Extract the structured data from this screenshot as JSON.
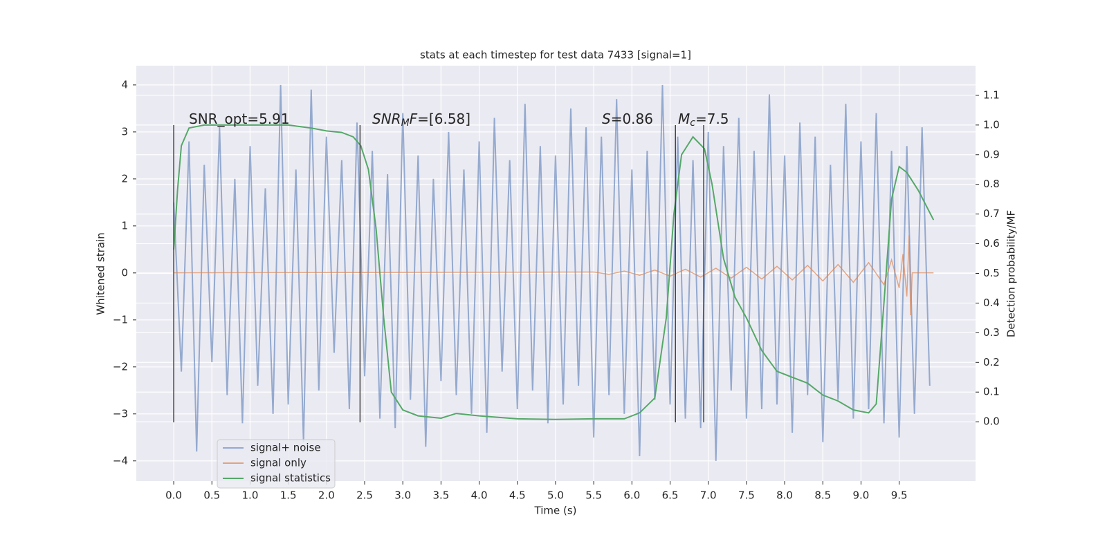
{
  "chart_data": {
    "type": "line",
    "title": "stats at each timestep for test data 7433 [signal=1]",
    "xlabel": "Time (s)",
    "ylabel": "Whitened strain",
    "y2label": "Detection probability/MF",
    "xlim": [
      -0.49,
      10.5
    ],
    "ylim": [
      -4.43,
      4.41
    ],
    "y2lim": [
      -0.2,
      1.2
    ],
    "xticks": [
      {
        "value": 0,
        "label": "0.0"
      },
      0.5,
      {
        "value": 1,
        "label": "1.0"
      },
      1.5,
      {
        "value": 2,
        "label": "2.0"
      },
      2.5,
      {
        "value": 3,
        "label": "3.0"
      },
      3.5,
      {
        "value": 4,
        "label": "4.0"
      },
      4.5,
      {
        "value": 5,
        "label": "5.0"
      },
      5.5,
      {
        "value": 6,
        "label": "6.0"
      },
      6.5,
      {
        "value": 7,
        "label": "7.0"
      },
      7.5,
      {
        "value": 8,
        "label": "8.0"
      },
      8.5,
      {
        "value": 9,
        "label": "9.0"
      },
      9.5
    ],
    "yticks": [
      {
        "value": -4,
        "label": "−4"
      },
      {
        "value": -3,
        "label": "−3"
      },
      {
        "value": -2,
        "label": "−2"
      },
      {
        "value": -1,
        "label": "−1"
      },
      0,
      1,
      2,
      3,
      4
    ],
    "y2ticks": [
      {
        "value": 0,
        "label": "0.0"
      },
      0.1,
      0.2,
      0.3,
      0.4,
      0.5,
      0.6,
      0.7,
      0.8,
      0.9,
      {
        "value": 1,
        "label": "1.0"
      },
      1.1
    ],
    "grid": true,
    "legend": "lower left",
    "background": "#eaeaf2",
    "vlines": [
      0,
      2.44,
      6.57,
      6.94
    ],
    "annotations": [
      {
        "parts": [
          {
            "text": "SNR_opt=5.91"
          }
        ]
      },
      {
        "parts": [
          {
            "text": "SNR",
            "italic": true
          },
          {
            "text": "M",
            "italic": true,
            "sub": true
          },
          {
            "text": "F",
            "italic": true
          },
          {
            "text": "=[6.58]"
          }
        ]
      },
      {
        "parts": [
          {
            "text": "S",
            "italic": true
          },
          {
            "text": "=0.86"
          }
        ]
      },
      {
        "parts": [
          {
            "text": "M",
            "italic": true
          },
          {
            "text": "c",
            "italic": true,
            "sub": true
          },
          {
            "text": "=7.5"
          }
        ]
      }
    ],
    "series": [
      {
        "name": "signal+ noise",
        "color": "#4c72b0",
        "axis": "y",
        "x": [
          0,
          0.1,
          0.2,
          0.3,
          0.4,
          0.5,
          0.6,
          0.7,
          0.8,
          0.9,
          1,
          1.1,
          1.2,
          1.3,
          1.4,
          1.5,
          1.6,
          1.7,
          1.8,
          1.9,
          2,
          2.1,
          2.2,
          2.3,
          2.4,
          2.5,
          2.6,
          2.7,
          2.8,
          2.9,
          3,
          3.1,
          3.2,
          3.3,
          3.4,
          3.5,
          3.6,
          3.7,
          3.8,
          3.9,
          4,
          4.1,
          4.2,
          4.3,
          4.4,
          4.5,
          4.6,
          4.7,
          4.8,
          4.9,
          5,
          5.1,
          5.2,
          5.3,
          5.4,
          5.5,
          5.6,
          5.7,
          5.8,
          5.9,
          6,
          6.1,
          6.2,
          6.3,
          6.4,
          6.5,
          6.6,
          6.7,
          6.8,
          6.9,
          7,
          7.1,
          7.2,
          7.3,
          7.4,
          7.5,
          7.6,
          7.7,
          7.8,
          7.9,
          8,
          8.1,
          8.2,
          8.3,
          8.4,
          8.5,
          8.6,
          8.7,
          8.8,
          8.9,
          9,
          9.1,
          9.2,
          9.3,
          9.4,
          9.5,
          9.6,
          9.7,
          9.8,
          9.9
        ],
        "values": [
          1.5,
          -2.1,
          2.8,
          -3.8,
          2.3,
          -1.9,
          3.1,
          -2.6,
          2.0,
          -3.2,
          2.7,
          -2.4,
          1.8,
          -3.0,
          4.0,
          -2.8,
          2.2,
          -3.6,
          3.9,
          -2.5,
          2.9,
          -1.7,
          2.4,
          -2.9,
          3.2,
          -2.2,
          2.6,
          -3.1,
          2.1,
          -3.3,
          3.4,
          -2.7,
          2.5,
          -3.7,
          2.0,
          -2.3,
          3.0,
          -2.6,
          2.2,
          -3.0,
          2.8,
          -3.4,
          3.3,
          -2.1,
          2.4,
          -2.9,
          3.6,
          -2.5,
          2.7,
          -3.2,
          2.5,
          -2.8,
          3.5,
          -2.4,
          3.1,
          -3.5,
          2.9,
          -2.6,
          3.7,
          -3.0,
          2.2,
          -3.9,
          2.6,
          -2.7,
          4.0,
          -2.8,
          2.9,
          -3.1,
          2.4,
          -3.3,
          3.0,
          -4.0,
          2.7,
          -2.5,
          3.3,
          -3.1,
          2.6,
          -2.9,
          3.8,
          -2.8,
          2.5,
          -3.4,
          3.2,
          -2.6,
          2.9,
          -3.6,
          2.3,
          -2.7,
          3.6,
          -3.1,
          2.8,
          -2.9,
          3.4,
          -3.2,
          2.6,
          -3.5,
          2.7,
          -3.0,
          3.1,
          -2.4
        ]
      },
      {
        "name": "signal only",
        "color": "#dd8452",
        "axis": "y",
        "x": [
          0,
          5.5,
          5.7,
          5.9,
          6.1,
          6.3,
          6.5,
          6.7,
          6.9,
          7.1,
          7.3,
          7.5,
          7.7,
          7.9,
          8.1,
          8.3,
          8.5,
          8.7,
          8.9,
          9.1,
          9.3,
          9.4,
          9.5,
          9.55,
          9.6,
          9.63,
          9.65,
          9.67,
          9.7,
          9.95
        ],
        "values": [
          0,
          0.02,
          -0.03,
          0.04,
          -0.05,
          0.06,
          -0.07,
          0.08,
          -0.09,
          0.1,
          -0.11,
          0.12,
          -0.13,
          0.14,
          -0.15,
          0.16,
          -0.17,
          0.18,
          -0.2,
          0.22,
          -0.25,
          0.28,
          -0.32,
          0.4,
          -0.5,
          0.8,
          -0.9,
          0,
          0,
          0
        ]
      },
      {
        "name": "signal statistics",
        "color": "#55a868",
        "axis": "y2",
        "x": [
          0,
          0.05,
          0.1,
          0.2,
          0.4,
          1,
          1.5,
          1.8,
          2,
          2.2,
          2.35,
          2.45,
          2.55,
          2.65,
          2.75,
          2.85,
          3,
          3.2,
          3.5,
          3.7,
          4,
          4.5,
          5,
          5.5,
          5.9,
          6.1,
          6.3,
          6.45,
          6.55,
          6.65,
          6.8,
          6.95,
          7.05,
          7.2,
          7.35,
          7.5,
          7.7,
          7.9,
          8.1,
          8.3,
          8.5,
          8.7,
          8.9,
          9.1,
          9.2,
          9.3,
          9.4,
          9.5,
          9.6,
          9.75,
          9.95
        ],
        "values": [
          0.58,
          0.78,
          0.93,
          0.99,
          1,
          1,
          1,
          0.99,
          0.98,
          0.975,
          0.96,
          0.93,
          0.85,
          0.65,
          0.35,
          0.1,
          0.04,
          0.02,
          0.012,
          0.028,
          0.02,
          0.01,
          0.008,
          0.01,
          0.01,
          0.03,
          0.08,
          0.35,
          0.7,
          0.9,
          0.96,
          0.92,
          0.8,
          0.55,
          0.42,
          0.35,
          0.24,
          0.17,
          0.15,
          0.13,
          0.09,
          0.07,
          0.04,
          0.03,
          0.06,
          0.4,
          0.75,
          0.86,
          0.84,
          0.78,
          0.68
        ]
      }
    ]
  }
}
